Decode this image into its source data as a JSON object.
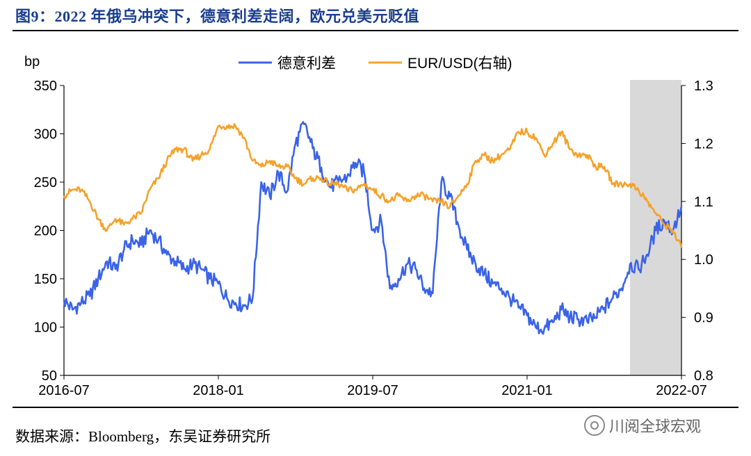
{
  "figure": {
    "title": "图9：2022 年俄乌冲突下，德意利差走阔，欧元兑美元贬值",
    "source": "数据来源：Bloomberg，东吴证券研究所",
    "watermark": "川阅全球宏观",
    "watermark_icon": "wechat-icon"
  },
  "chart_data": {
    "type": "line",
    "left_axis": {
      "unit_label": "bp",
      "ylim": [
        50,
        350
      ],
      "ticks": [
        "350",
        "300",
        "250",
        "200",
        "150",
        "100",
        "50"
      ]
    },
    "right_axis": {
      "ylim": [
        0.8,
        1.3
      ],
      "ticks": [
        "1.3",
        "1.2",
        "1.1",
        "1.0",
        "0.9",
        "0.8"
      ]
    },
    "x_axis": {
      "range": [
        "2016-07",
        "2022-07"
      ],
      "ticks": [
        "2016-07",
        "2018-01",
        "2019-07",
        "2021-01",
        "2022-07"
      ]
    },
    "shaded_region": {
      "from": "2022-01",
      "to": "2022-07",
      "color": "#d9d9d9"
    },
    "legend_position": "top-center",
    "series": [
      {
        "name": "德意利差",
        "axis": "left",
        "color": "#3a63e8",
        "points": [
          [
            "2016-07",
            128
          ],
          [
            "2016-08",
            118
          ],
          [
            "2016-09",
            125
          ],
          [
            "2016-10",
            132
          ],
          [
            "2016-11",
            150
          ],
          [
            "2016-12",
            168
          ],
          [
            "2017-01",
            160
          ],
          [
            "2017-02",
            180
          ],
          [
            "2017-03",
            190
          ],
          [
            "2017-04",
            185
          ],
          [
            "2017-05",
            200
          ],
          [
            "2017-06",
            190
          ],
          [
            "2017-07",
            175
          ],
          [
            "2017-08",
            168
          ],
          [
            "2017-09",
            160
          ],
          [
            "2017-10",
            165
          ],
          [
            "2017-11",
            160
          ],
          [
            "2017-12",
            150
          ],
          [
            "2018-01",
            145
          ],
          [
            "2018-02",
            130
          ],
          [
            "2018-03",
            125
          ],
          [
            "2018-04",
            122
          ],
          [
            "2018-05",
            130
          ],
          [
            "2018-06",
            250
          ],
          [
            "2018-07",
            235
          ],
          [
            "2018-08",
            260
          ],
          [
            "2018-09",
            240
          ],
          [
            "2018-10",
            290
          ],
          [
            "2018-11",
            310
          ],
          [
            "2018-12",
            285
          ],
          [
            "2019-01",
            265
          ],
          [
            "2019-02",
            245
          ],
          [
            "2019-03",
            250
          ],
          [
            "2019-04",
            255
          ],
          [
            "2019-05",
            270
          ],
          [
            "2019-06",
            260
          ],
          [
            "2019-07",
            200
          ],
          [
            "2019-08",
            210
          ],
          [
            "2019-09",
            140
          ],
          [
            "2019-10",
            150
          ],
          [
            "2019-11",
            165
          ],
          [
            "2019-12",
            160
          ],
          [
            "2020-01",
            140
          ],
          [
            "2020-02",
            135
          ],
          [
            "2020-03",
            250
          ],
          [
            "2020-04",
            235
          ],
          [
            "2020-05",
            205
          ],
          [
            "2020-06",
            180
          ],
          [
            "2020-07",
            165
          ],
          [
            "2020-08",
            155
          ],
          [
            "2020-09",
            145
          ],
          [
            "2020-10",
            140
          ],
          [
            "2020-11",
            130
          ],
          [
            "2020-12",
            120
          ],
          [
            "2021-01",
            112
          ],
          [
            "2021-02",
            100
          ],
          [
            "2021-03",
            98
          ],
          [
            "2021-04",
            105
          ],
          [
            "2021-05",
            118
          ],
          [
            "2021-06",
            110
          ],
          [
            "2021-07",
            108
          ],
          [
            "2021-08",
            106
          ],
          [
            "2021-09",
            110
          ],
          [
            "2021-10",
            120
          ],
          [
            "2021-11",
            130
          ],
          [
            "2021-12",
            140
          ],
          [
            "2022-01",
            165
          ],
          [
            "2022-02",
            160
          ],
          [
            "2022-03",
            175
          ],
          [
            "2022-04",
            200
          ],
          [
            "2022-05",
            210
          ],
          [
            "2022-06",
            200
          ],
          [
            "2022-07",
            225
          ]
        ]
      },
      {
        "name": "EUR/USD(右轴)",
        "axis": "right",
        "color": "#f5a22a",
        "points": [
          [
            "2016-07",
            1.11
          ],
          [
            "2016-08",
            1.12
          ],
          [
            "2016-09",
            1.12
          ],
          [
            "2016-10",
            1.1
          ],
          [
            "2016-11",
            1.07
          ],
          [
            "2016-12",
            1.05
          ],
          [
            "2017-01",
            1.07
          ],
          [
            "2017-02",
            1.06
          ],
          [
            "2017-03",
            1.07
          ],
          [
            "2017-04",
            1.08
          ],
          [
            "2017-05",
            1.12
          ],
          [
            "2017-06",
            1.14
          ],
          [
            "2017-07",
            1.17
          ],
          [
            "2017-08",
            1.19
          ],
          [
            "2017-09",
            1.19
          ],
          [
            "2017-10",
            1.17
          ],
          [
            "2017-11",
            1.18
          ],
          [
            "2017-12",
            1.19
          ],
          [
            "2018-01",
            1.23
          ],
          [
            "2018-02",
            1.23
          ],
          [
            "2018-03",
            1.23
          ],
          [
            "2018-04",
            1.21
          ],
          [
            "2018-05",
            1.17
          ],
          [
            "2018-06",
            1.16
          ],
          [
            "2018-07",
            1.17
          ],
          [
            "2018-08",
            1.16
          ],
          [
            "2018-09",
            1.16
          ],
          [
            "2018-10",
            1.14
          ],
          [
            "2018-11",
            1.13
          ],
          [
            "2018-12",
            1.14
          ],
          [
            "2019-01",
            1.14
          ],
          [
            "2019-02",
            1.13
          ],
          [
            "2019-03",
            1.13
          ],
          [
            "2019-04",
            1.12
          ],
          [
            "2019-05",
            1.12
          ],
          [
            "2019-06",
            1.13
          ],
          [
            "2019-07",
            1.12
          ],
          [
            "2019-08",
            1.11
          ],
          [
            "2019-09",
            1.1
          ],
          [
            "2019-10",
            1.11
          ],
          [
            "2019-11",
            1.1
          ],
          [
            "2019-12",
            1.11
          ],
          [
            "2020-01",
            1.11
          ],
          [
            "2020-02",
            1.1
          ],
          [
            "2020-03",
            1.1
          ],
          [
            "2020-04",
            1.09
          ],
          [
            "2020-05",
            1.11
          ],
          [
            "2020-06",
            1.13
          ],
          [
            "2020-07",
            1.17
          ],
          [
            "2020-08",
            1.18
          ],
          [
            "2020-09",
            1.17
          ],
          [
            "2020-10",
            1.18
          ],
          [
            "2020-11",
            1.19
          ],
          [
            "2020-12",
            1.22
          ],
          [
            "2021-01",
            1.22
          ],
          [
            "2021-02",
            1.21
          ],
          [
            "2021-03",
            1.18
          ],
          [
            "2021-04",
            1.2
          ],
          [
            "2021-05",
            1.22
          ],
          [
            "2021-06",
            1.19
          ],
          [
            "2021-07",
            1.18
          ],
          [
            "2021-08",
            1.18
          ],
          [
            "2021-09",
            1.16
          ],
          [
            "2021-10",
            1.16
          ],
          [
            "2021-11",
            1.13
          ],
          [
            "2021-12",
            1.13
          ],
          [
            "2022-01",
            1.13
          ],
          [
            "2022-02",
            1.12
          ],
          [
            "2022-03",
            1.1
          ],
          [
            "2022-04",
            1.08
          ],
          [
            "2022-05",
            1.06
          ],
          [
            "2022-06",
            1.05
          ],
          [
            "2022-07",
            1.02
          ]
        ]
      }
    ]
  }
}
